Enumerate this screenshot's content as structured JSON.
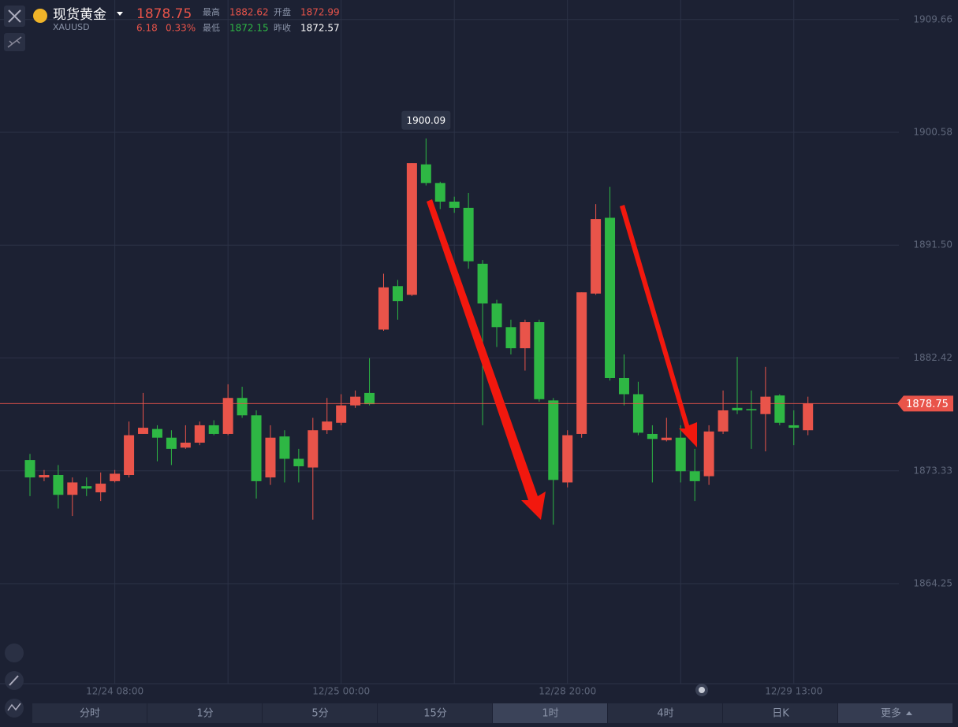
{
  "header": {
    "name": "现货黄金",
    "symbol": "XAUUSD",
    "change": "6.18",
    "change_pct": "0.33%",
    "stats": [
      {
        "label": "最高",
        "value": "1882.62"
      },
      {
        "label": "开盘",
        "value": "1872.99"
      },
      {
        "label": "最低",
        "value": "1872.15"
      },
      {
        "label": "昨收",
        "value": "1872.57"
      }
    ]
  },
  "tabs": [
    "分时",
    "1分",
    "5分",
    "15分",
    "1时",
    "4时",
    "日K",
    "更多"
  ],
  "chart_data": {
    "type": "candlestick",
    "categories": [
      null,
      null,
      null,
      null,
      null,
      null,
      "12/24 08:00",
      null,
      null,
      null,
      null,
      null,
      null,
      null,
      null,
      null,
      null,
      null,
      null,
      null,
      null,
      null,
      "12/25 00:00",
      null,
      null,
      null,
      null,
      null,
      null,
      null,
      null,
      null,
      null,
      null,
      null,
      null,
      null,
      null,
      "12/28 20:00",
      null,
      null,
      null,
      null,
      null,
      null,
      null,
      null,
      null,
      null,
      null,
      null,
      null,
      null,
      null,
      "12/29 13:00",
      null
    ],
    "open": [
      1874.2,
      1872.8,
      1873.0,
      1871.4,
      1872.1,
      1871.6,
      1872.5,
      1873.0,
      1876.3,
      1876.7,
      1876.0,
      1875.2,
      1875.6,
      1877.0,
      1876.3,
      1879.2,
      1877.8,
      1872.8,
      1876.1,
      1874.3,
      1873.6,
      1876.6,
      1877.2,
      1878.6,
      1879.6,
      1884.7,
      1888.2,
      1887.5,
      1898.0,
      1896.5,
      1895.0,
      1894.5,
      1890.0,
      1886.8,
      1884.9,
      1883.2,
      1885.3,
      1879.0,
      1872.4,
      1876.3,
      1887.6,
      1893.7,
      1880.8,
      1879.5,
      1876.3,
      1875.8,
      1876.0,
      1873.3,
      1872.9,
      1876.5,
      1878.4,
      1878.3,
      1877.9,
      1879.4,
      1877.0,
      1876.6
    ],
    "high": [
      1874.7,
      1873.4,
      1873.8,
      1872.8,
      1872.8,
      1873.2,
      1873.4,
      1877.3,
      1879.6,
      1877.0,
      1876.6,
      1877.0,
      1877.3,
      1877.4,
      1880.3,
      1880.1,
      1878.2,
      1877.0,
      1876.6,
      1875.1,
      1877.6,
      1879.2,
      1879.5,
      1879.8,
      1882.4,
      1889.2,
      1888.7,
      1898.1,
      1900.09,
      1896.6,
      1895.4,
      1895.7,
      1890.3,
      1887.1,
      1885.5,
      1885.5,
      1885.5,
      1879.2,
      1876.6,
      1887.7,
      1894.8,
      1896.2,
      1882.7,
      1880.5,
      1877.0,
      1877.6,
      1877.0,
      1875.1,
      1877.0,
      1879.8,
      1882.5,
      1879.8,
      1881.7,
      1879.5,
      1878.2,
      1879.3
    ],
    "low": [
      1871.3,
      1872.5,
      1870.3,
      1869.7,
      1871.3,
      1870.9,
      1872.4,
      1872.8,
      1876.3,
      1874.1,
      1873.8,
      1875.1,
      1875.4,
      1876.2,
      1876.2,
      1877.6,
      1871.1,
      1872.2,
      1872.4,
      1872.4,
      1869.4,
      1876.3,
      1877.0,
      1878.4,
      1878.6,
      1884.6,
      1885.5,
      1887.4,
      1896.3,
      1894.4,
      1894.1,
      1889.6,
      1877.0,
      1883.3,
      1882.7,
      1881.4,
      1878.9,
      1869.0,
      1872.0,
      1876.0,
      1887.5,
      1880.6,
      1878.6,
      1876.2,
      1872.4,
      1875.7,
      1872.4,
      1870.9,
      1872.2,
      1876.3,
      1877.9,
      1875.1,
      1874.9,
      1877.0,
      1875.4,
      1876.2
    ],
    "close": [
      1872.8,
      1873.0,
      1871.4,
      1872.4,
      1871.9,
      1872.3,
      1873.1,
      1876.2,
      1876.8,
      1876.0,
      1875.1,
      1875.6,
      1877.0,
      1876.3,
      1879.2,
      1877.8,
      1872.5,
      1876.0,
      1874.3,
      1873.7,
      1876.6,
      1877.3,
      1878.6,
      1879.3,
      1878.7,
      1888.1,
      1887.0,
      1898.1,
      1896.5,
      1895.0,
      1894.5,
      1890.2,
      1886.8,
      1884.9,
      1883.2,
      1885.3,
      1879.1,
      1872.6,
      1876.2,
      1887.7,
      1893.6,
      1880.8,
      1879.5,
      1876.4,
      1875.9,
      1876.0,
      1873.3,
      1872.5,
      1876.5,
      1878.2,
      1878.2,
      1878.2,
      1879.3,
      1877.2,
      1876.8,
      1878.75
    ],
    "up_color": "#e9544a",
    "down_color": "#2eb744",
    "ylim": [
      1856.2,
      1911.23
    ],
    "yticks": [
      1864.25,
      1873.33,
      1882.42,
      {
        "value": 1891.5,
        "label": "1891.50"
      },
      1900.58,
      1909.66
    ],
    "current_price": 1878.75,
    "grid": true
  }
}
